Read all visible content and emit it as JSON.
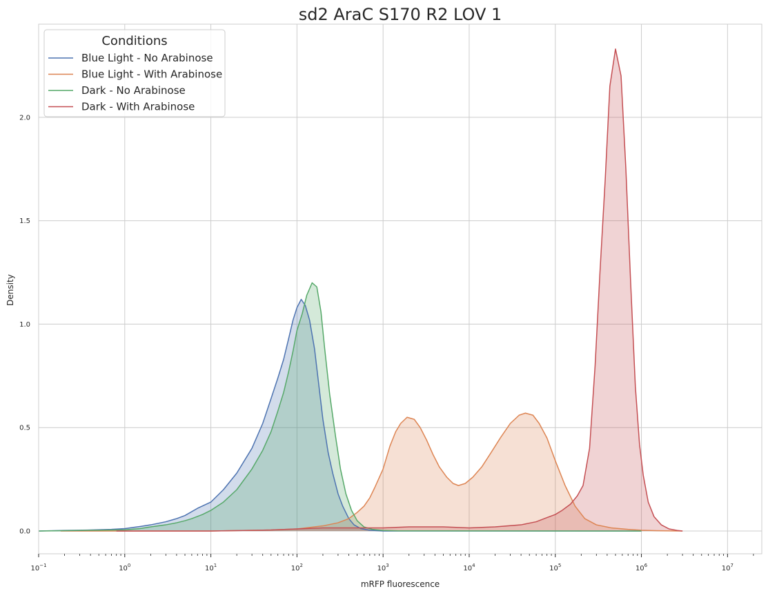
{
  "chart_data": {
    "type": "area",
    "title": "sd2 AraC S170 R2 LOV 1",
    "xlabel": "mRFP fluorescence",
    "ylabel": "Density",
    "x_scale": "log",
    "xlim": [
      0.1,
      25000000
    ],
    "ylim": [
      -0.11,
      2.45
    ],
    "grid": true,
    "x_ticks": [
      {
        "base": "10",
        "exp": "−1",
        "value": 0.1
      },
      {
        "base": "10",
        "exp": "0",
        "value": 1
      },
      {
        "base": "10",
        "exp": "1",
        "value": 10
      },
      {
        "base": "10",
        "exp": "2",
        "value": 100
      },
      {
        "base": "10",
        "exp": "3",
        "value": 1000
      },
      {
        "base": "10",
        "exp": "4",
        "value": 10000
      },
      {
        "base": "10",
        "exp": "5",
        "value": 100000
      },
      {
        "base": "10",
        "exp": "6",
        "value": 1000000
      },
      {
        "base": "10",
        "exp": "7",
        "value": 10000000
      }
    ],
    "y_ticks": [
      "0.0",
      "0.5",
      "1.0",
      "1.5",
      "2.0"
    ],
    "y_tick_values": [
      0,
      0.5,
      1.0,
      1.5,
      2.0
    ],
    "legend": {
      "title": "Conditions",
      "placement": "upper-left"
    },
    "series": [
      {
        "name": "Blue Light - No Arabinose",
        "color": "#4c72b0",
        "points": [
          [
            0.1,
            0.0
          ],
          [
            0.2,
            0.003
          ],
          [
            0.4,
            0.005
          ],
          [
            0.7,
            0.008
          ],
          [
            1,
            0.012
          ],
          [
            1.5,
            0.022
          ],
          [
            2,
            0.03
          ],
          [
            3,
            0.045
          ],
          [
            4,
            0.06
          ],
          [
            5,
            0.075
          ],
          [
            7,
            0.11
          ],
          [
            10,
            0.14
          ],
          [
            14,
            0.2
          ],
          [
            20,
            0.28
          ],
          [
            30,
            0.4
          ],
          [
            40,
            0.52
          ],
          [
            50,
            0.64
          ],
          [
            60,
            0.74
          ],
          [
            70,
            0.83
          ],
          [
            80,
            0.93
          ],
          [
            90,
            1.02
          ],
          [
            100,
            1.08
          ],
          [
            112,
            1.12
          ],
          [
            125,
            1.09
          ],
          [
            140,
            1.02
          ],
          [
            160,
            0.88
          ],
          [
            180,
            0.7
          ],
          [
            200,
            0.54
          ],
          [
            230,
            0.38
          ],
          [
            260,
            0.28
          ],
          [
            300,
            0.18
          ],
          [
            340,
            0.12
          ],
          [
            400,
            0.06
          ],
          [
            460,
            0.03
          ],
          [
            550,
            0.012
          ],
          [
            700,
            0.004
          ],
          [
            1000,
            0.0
          ],
          [
            1000000,
            0.0
          ]
        ]
      },
      {
        "name": "Blue Light - With Arabinose",
        "color": "#dd8452",
        "points": [
          [
            0.18,
            0.0
          ],
          [
            1,
            0.0
          ],
          [
            10,
            0.0
          ],
          [
            50,
            0.005
          ],
          [
            100,
            0.01
          ],
          [
            200,
            0.025
          ],
          [
            300,
            0.04
          ],
          [
            400,
            0.06
          ],
          [
            500,
            0.09
          ],
          [
            600,
            0.12
          ],
          [
            700,
            0.16
          ],
          [
            800,
            0.21
          ],
          [
            1000,
            0.3
          ],
          [
            1200,
            0.41
          ],
          [
            1400,
            0.48
          ],
          [
            1600,
            0.52
          ],
          [
            1900,
            0.55
          ],
          [
            2300,
            0.54
          ],
          [
            2700,
            0.5
          ],
          [
            3200,
            0.44
          ],
          [
            3800,
            0.37
          ],
          [
            4500,
            0.31
          ],
          [
            5500,
            0.26
          ],
          [
            6500,
            0.23
          ],
          [
            7500,
            0.22
          ],
          [
            9000,
            0.23
          ],
          [
            11000,
            0.26
          ],
          [
            14000,
            0.31
          ],
          [
            18000,
            0.38
          ],
          [
            23000,
            0.45
          ],
          [
            30000,
            0.52
          ],
          [
            38000,
            0.56
          ],
          [
            45000,
            0.57
          ],
          [
            55000,
            0.56
          ],
          [
            65000,
            0.52
          ],
          [
            80000,
            0.45
          ],
          [
            100000,
            0.34
          ],
          [
            130000,
            0.22
          ],
          [
            170000,
            0.12
          ],
          [
            220000,
            0.06
          ],
          [
            300000,
            0.03
          ],
          [
            450000,
            0.015
          ],
          [
            700000,
            0.008
          ],
          [
            1000000,
            0.004
          ],
          [
            1500000,
            0.002
          ],
          [
            2000000,
            0.001
          ],
          [
            3000000,
            0.0
          ]
        ]
      },
      {
        "name": "Dark - No Arabinose",
        "color": "#55a868",
        "points": [
          [
            0.1,
            0.0
          ],
          [
            0.2,
            0.002
          ],
          [
            0.5,
            0.004
          ],
          [
            1,
            0.006
          ],
          [
            1.5,
            0.012
          ],
          [
            2,
            0.02
          ],
          [
            3,
            0.03
          ],
          [
            4,
            0.04
          ],
          [
            5,
            0.05
          ],
          [
            6,
            0.06
          ],
          [
            8,
            0.08
          ],
          [
            10,
            0.1
          ],
          [
            14,
            0.14
          ],
          [
            20,
            0.2
          ],
          [
            30,
            0.3
          ],
          [
            40,
            0.39
          ],
          [
            50,
            0.48
          ],
          [
            60,
            0.58
          ],
          [
            70,
            0.67
          ],
          [
            80,
            0.77
          ],
          [
            90,
            0.87
          ],
          [
            100,
            0.97
          ],
          [
            115,
            1.05
          ],
          [
            130,
            1.14
          ],
          [
            150,
            1.2
          ],
          [
            170,
            1.18
          ],
          [
            190,
            1.06
          ],
          [
            210,
            0.88
          ],
          [
            240,
            0.66
          ],
          [
            280,
            0.46
          ],
          [
            320,
            0.3
          ],
          [
            370,
            0.18
          ],
          [
            430,
            0.1
          ],
          [
            500,
            0.05
          ],
          [
            600,
            0.02
          ],
          [
            750,
            0.008
          ],
          [
            1000,
            0.003
          ],
          [
            1500,
            0.001
          ],
          [
            1000000,
            0.0
          ]
        ]
      },
      {
        "name": "Dark - With Arabinose",
        "color": "#c44e52",
        "points": [
          [
            0.8,
            0.0
          ],
          [
            10,
            0.0
          ],
          [
            50,
            0.005
          ],
          [
            100,
            0.01
          ],
          [
            200,
            0.015
          ],
          [
            500,
            0.015
          ],
          [
            1000,
            0.015
          ],
          [
            2000,
            0.02
          ],
          [
            5000,
            0.02
          ],
          [
            10000,
            0.015
          ],
          [
            20000,
            0.02
          ],
          [
            40000,
            0.03
          ],
          [
            60000,
            0.045
          ],
          [
            80000,
            0.065
          ],
          [
            100000,
            0.08
          ],
          [
            120000,
            0.1
          ],
          [
            150000,
            0.13
          ],
          [
            180000,
            0.17
          ],
          [
            210000,
            0.22
          ],
          [
            250000,
            0.4
          ],
          [
            290000,
            0.8
          ],
          [
            330000,
            1.25
          ],
          [
            380000,
            1.7
          ],
          [
            430000,
            2.15
          ],
          [
            500000,
            2.33
          ],
          [
            580000,
            2.2
          ],
          [
            660000,
            1.75
          ],
          [
            750000,
            1.2
          ],
          [
            850000,
            0.7
          ],
          [
            950000,
            0.42
          ],
          [
            1050000,
            0.27
          ],
          [
            1200000,
            0.14
          ],
          [
            1400000,
            0.07
          ],
          [
            1700000,
            0.03
          ],
          [
            2100000,
            0.01
          ],
          [
            2600000,
            0.003
          ],
          [
            3000000,
            0.0
          ]
        ]
      }
    ]
  }
}
